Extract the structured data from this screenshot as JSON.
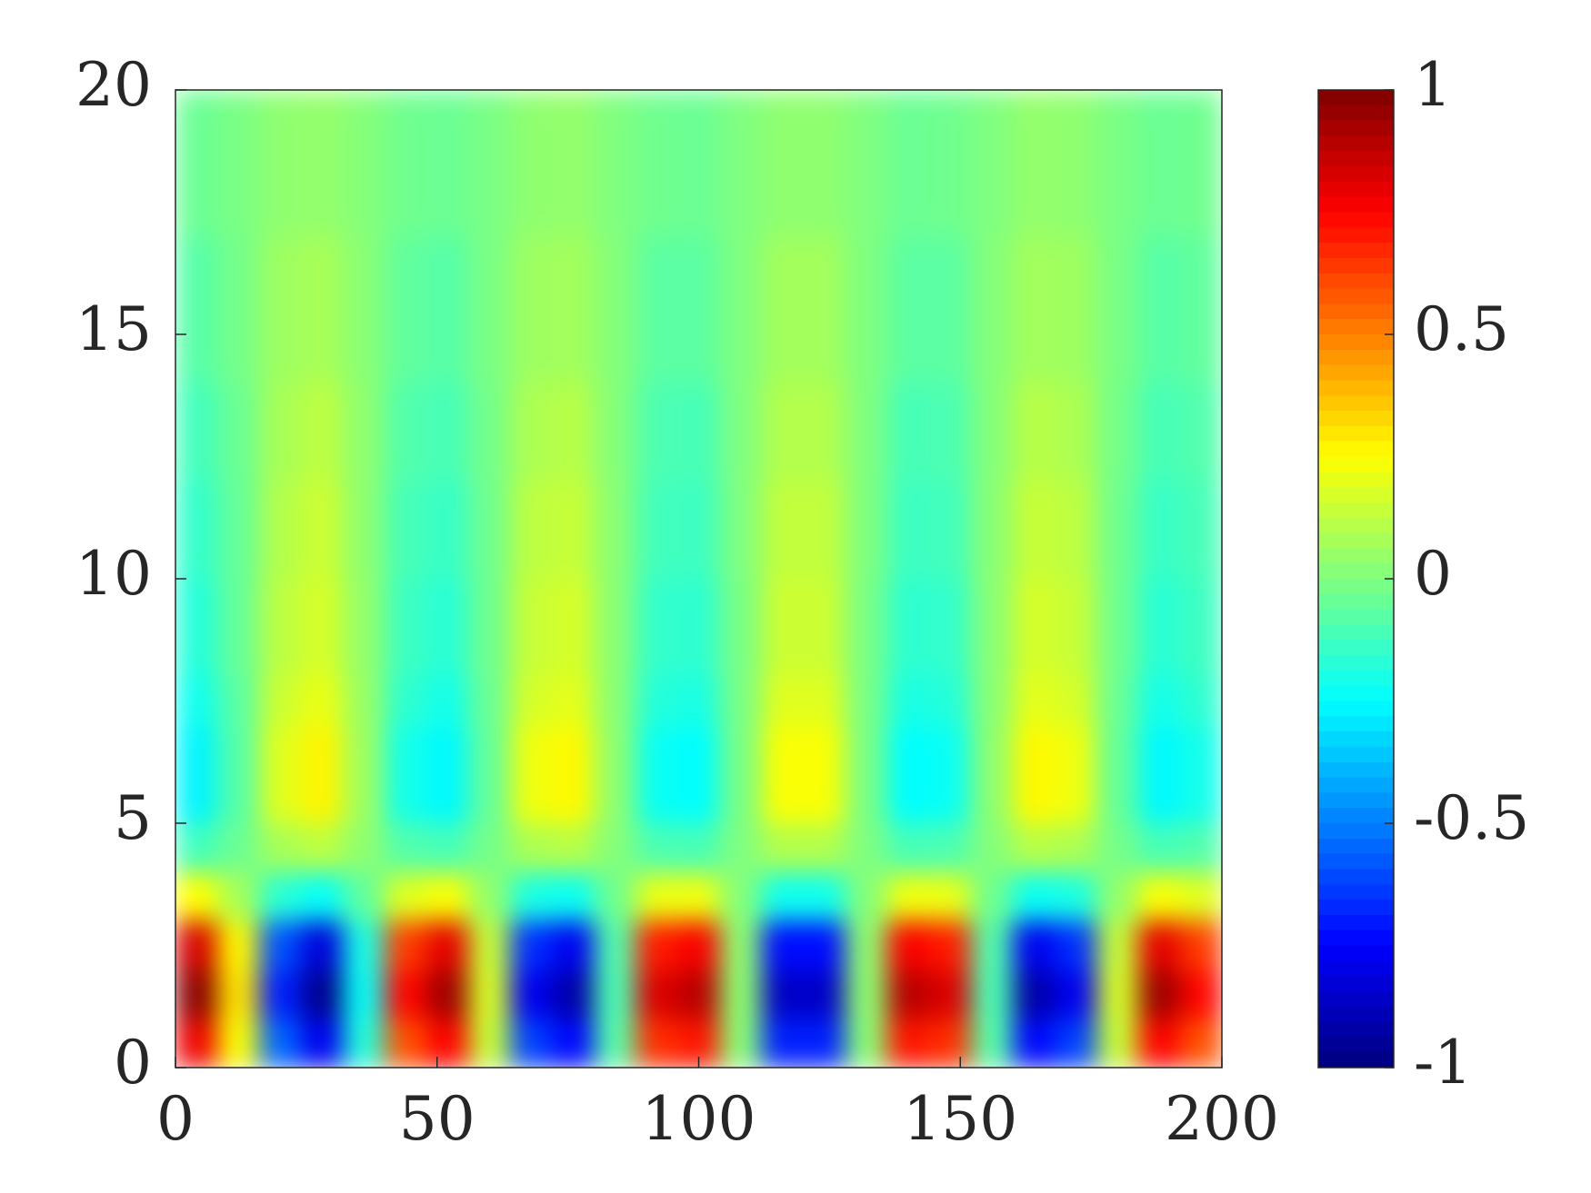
{
  "chart_data": {
    "type": "heatmap",
    "colormap": "jet",
    "x_bins": [
      0,
      8,
      16,
      24,
      32,
      40,
      48,
      56,
      64,
      72,
      80,
      88,
      96,
      104,
      112,
      120,
      128,
      136,
      144,
      152,
      160,
      168,
      176,
      184,
      192,
      200
    ],
    "y_bins": [
      0,
      1,
      2,
      3,
      4,
      5,
      6,
      7,
      8,
      10,
      12,
      14,
      17,
      20
    ],
    "z": [
      [
        0.78,
        0.24,
        -0.55,
        -0.78,
        -0.18,
        0.59,
        0.75,
        0.14,
        -0.62,
        -0.74,
        -0.08,
        0.66,
        0.71,
        0.02,
        -0.69,
        -0.69,
        0.02,
        0.71,
        0.66,
        -0.08,
        -0.74,
        -0.62,
        0.14,
        0.75,
        0.59
      ],
      [
        0.98,
        0.3,
        -0.69,
        -0.97,
        -0.23,
        0.74,
        0.94,
        0.17,
        -0.78,
        -0.92,
        -0.1,
        0.82,
        0.89,
        0.03,
        -0.86,
        -0.86,
        0.03,
        0.89,
        0.82,
        -0.1,
        -0.92,
        -0.78,
        0.17,
        0.94,
        0.74
      ],
      [
        0.83,
        0.26,
        -0.59,
        -0.82,
        -0.2,
        0.63,
        0.8,
        0.14,
        -0.66,
        -0.78,
        -0.09,
        0.7,
        0.76,
        0.03,
        -0.73,
        -0.73,
        0.03,
        0.76,
        0.7,
        -0.09,
        -0.78,
        -0.66,
        0.14,
        0.8,
        0.63
      ],
      [
        0.25,
        0.08,
        -0.17,
        -0.24,
        -0.06,
        0.19,
        0.24,
        0.04,
        -0.2,
        -0.23,
        -0.03,
        0.21,
        0.22,
        0.01,
        -0.22,
        -0.22,
        0.01,
        0.22,
        0.21,
        -0.03,
        -0.23,
        -0.2,
        0.04,
        0.24,
        0.19
      ],
      [
        -0.12,
        -0.04,
        0.08,
        0.12,
        0.03,
        -0.09,
        -0.11,
        -0.02,
        0.09,
        0.11,
        0.01,
        -0.1,
        -0.11,
        0,
        0.1,
        0.1,
        0,
        -0.11,
        -0.1,
        0.01,
        0.11,
        0.09,
        -0.02,
        -0.11,
        -0.09
      ],
      [
        -0.27,
        -0.08,
        0.19,
        0.27,
        0.06,
        -0.21,
        -0.26,
        -0.05,
        0.22,
        0.26,
        0.03,
        -0.23,
        -0.25,
        -0.01,
        0.24,
        0.24,
        -0.01,
        -0.25,
        -0.23,
        0.03,
        0.26,
        0.22,
        -0.05,
        -0.26,
        -0.21
      ],
      [
        -0.27,
        -0.08,
        0.19,
        0.27,
        0.06,
        -0.21,
        -0.26,
        -0.05,
        0.22,
        0.26,
        0.03,
        -0.23,
        -0.25,
        -0.01,
        0.24,
        0.24,
        -0.01,
        -0.25,
        -0.23,
        0.03,
        0.26,
        0.22,
        -0.05,
        -0.26,
        -0.21
      ],
      [
        -0.22,
        -0.07,
        0.15,
        0.21,
        0.05,
        -0.16,
        -0.21,
        -0.04,
        0.17,
        0.2,
        0.02,
        -0.18,
        -0.2,
        -0.01,
        0.19,
        0.19,
        -0.01,
        -0.2,
        -0.18,
        0.02,
        0.2,
        0.17,
        -0.04,
        -0.21,
        -0.16
      ],
      [
        -0.18,
        -0.05,
        0.12,
        0.17,
        0.04,
        -0.13,
        -0.17,
        -0.03,
        0.14,
        0.17,
        0.02,
        -0.15,
        -0.16,
        -0.01,
        0.15,
        0.15,
        -0.01,
        -0.16,
        -0.15,
        0.02,
        0.17,
        0.14,
        -0.03,
        -0.17,
        -0.13
      ],
      [
        -0.15,
        -0.05,
        0.1,
        0.15,
        0.03,
        -0.11,
        -0.14,
        -0.03,
        0.12,
        0.14,
        0.02,
        -0.12,
        -0.13,
        0,
        0.13,
        0.13,
        0,
        -0.13,
        -0.12,
        0.02,
        0.14,
        0.12,
        -0.03,
        -0.14,
        -0.11
      ],
      [
        -0.12,
        -0.04,
        0.08,
        0.12,
        0.03,
        -0.09,
        -0.11,
        -0.02,
        0.09,
        0.11,
        0.01,
        -0.1,
        -0.11,
        0,
        0.1,
        0.1,
        0,
        -0.11,
        -0.1,
        0.01,
        0.11,
        0.09,
        -0.02,
        -0.11,
        -0.09
      ],
      [
        -0.08,
        -0.02,
        0.06,
        0.08,
        0.02,
        -0.06,
        -0.08,
        -0.01,
        0.06,
        0.07,
        0.01,
        -0.07,
        -0.07,
        0,
        0.07,
        0.07,
        0,
        -0.07,
        -0.07,
        0.01,
        0.07,
        0.06,
        -0.01,
        -0.08,
        -0.06
      ],
      [
        -0.04,
        -0.01,
        0.03,
        0.04,
        0.01,
        -0.03,
        -0.04,
        -0.01,
        0.03,
        0.04,
        0,
        -0.03,
        -0.04,
        0,
        0.03,
        0.03,
        0,
        -0.04,
        -0.03,
        0,
        0.04,
        0.03,
        -0.01,
        -0.04,
        -0.03
      ]
    ],
    "xlim": [
      0,
      200
    ],
    "ylim": [
      0,
      20
    ],
    "xticks": [
      0,
      50,
      100,
      150,
      200
    ],
    "yticks": [
      0,
      5,
      10,
      15,
      20
    ],
    "clim": [
      -1,
      1
    ],
    "cticks": [
      -1,
      -0.5,
      0,
      0.5,
      1
    ]
  }
}
